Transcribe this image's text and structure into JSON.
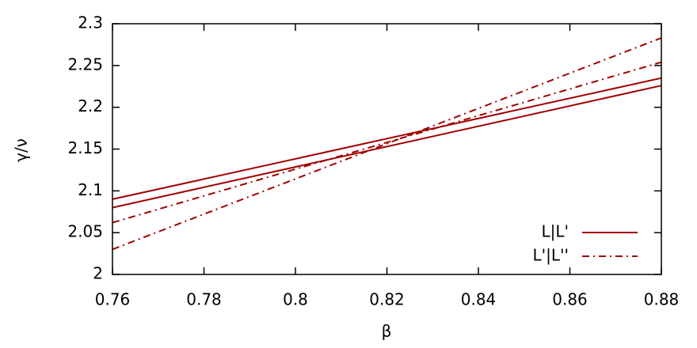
{
  "chart_data": {
    "type": "line",
    "x_label": "β",
    "y_label": "γ/ν",
    "x": [
      0.76,
      0.88
    ],
    "series": [
      {
        "name": "L|L'",
        "color": "#a00000",
        "dash": "solid",
        "lines": [
          [
            2.09,
            2.235
          ],
          [
            2.08,
            2.226
          ]
        ]
      },
      {
        "name": "L'|L''",
        "color": "#a00000",
        "dash": "dash-dot",
        "lines": [
          [
            2.062,
            2.254
          ],
          [
            2.03,
            2.283
          ]
        ]
      }
    ],
    "xlim": [
      0.76,
      0.88
    ],
    "xticks": [
      0.76,
      0.78,
      0.8,
      0.82,
      0.84,
      0.86,
      0.88
    ],
    "ylim": [
      2,
      2.3
    ],
    "yticks": [
      2,
      2.05,
      2.1,
      2.15,
      2.2,
      2.25,
      2.3
    ],
    "legend": "lower right"
  }
}
